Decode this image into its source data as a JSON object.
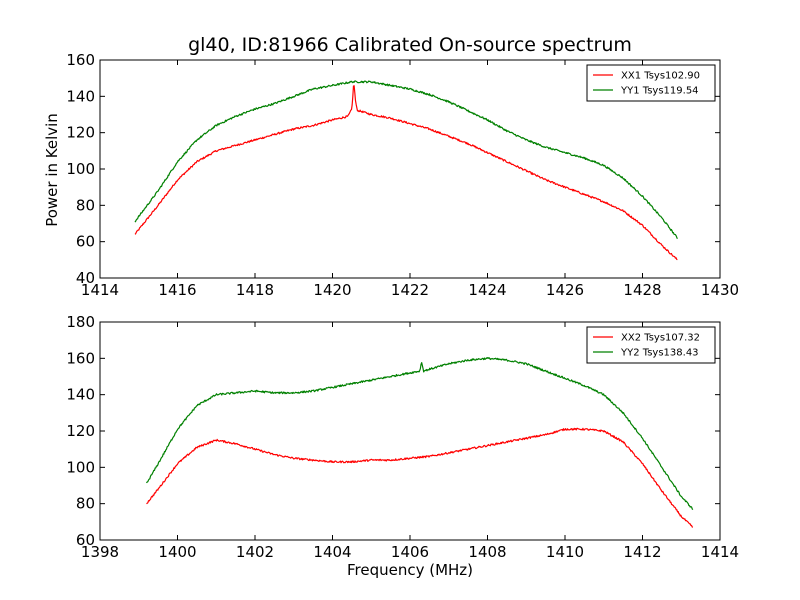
{
  "figure": {
    "title": "gl40, ID:81966 Calibrated On-source spectrum",
    "xlabel": "Frequency (MHz)",
    "ylabel": "Power in Kelvin"
  },
  "colors": {
    "red": "#ff0000",
    "green": "#008000"
  },
  "chart_data": [
    {
      "type": "line",
      "title": "gl40, ID:81966 Calibrated On-source spectrum",
      "ylabel": "Power in Kelvin",
      "xlim": [
        1414,
        1430
      ],
      "ylim": [
        40,
        160
      ],
      "xticks": [
        1414,
        1416,
        1418,
        1420,
        1422,
        1424,
        1426,
        1428,
        1430
      ],
      "yticks": [
        40,
        60,
        80,
        100,
        120,
        140,
        160
      ],
      "legend": "top-right",
      "series": [
        {
          "name": "XX1 Tsys102.90",
          "color": "#ff0000",
          "x": [
            1414.9,
            1415.5,
            1416,
            1416.5,
            1417,
            1417.5,
            1418,
            1418.5,
            1419,
            1419.5,
            1420,
            1420.4,
            1420.5,
            1420.55,
            1420.6,
            1420.65,
            1420.7,
            1421,
            1421.5,
            1422,
            1422.5,
            1423,
            1423.5,
            1424,
            1424.5,
            1425,
            1425.5,
            1426,
            1426.5,
            1427,
            1427.5,
            1428,
            1428.5,
            1428.9
          ],
          "values": [
            64,
            80,
            94,
            104,
            110,
            113,
            116,
            119,
            122,
            124,
            127,
            129,
            133,
            148,
            136,
            132,
            132,
            130,
            128,
            125,
            122,
            118,
            114,
            109,
            104,
            99,
            94,
            90,
            86,
            82,
            77,
            69,
            58,
            50
          ]
        },
        {
          "name": "YY1 Tsys119.54",
          "color": "#008000",
          "x": [
            1414.9,
            1415.5,
            1416,
            1416.5,
            1417,
            1417.5,
            1418,
            1418.5,
            1419,
            1419.5,
            1420,
            1420.5,
            1421,
            1421.5,
            1422,
            1422.5,
            1423,
            1423.5,
            1424,
            1424.5,
            1425,
            1425.5,
            1426,
            1426.5,
            1427,
            1427.5,
            1428,
            1428.5,
            1428.9
          ],
          "values": [
            71,
            88,
            104,
            116,
            124,
            129,
            133,
            136,
            140,
            144,
            146,
            148,
            148,
            146,
            144,
            141,
            137,
            132,
            127,
            121,
            116,
            112,
            109,
            106,
            102,
            95,
            85,
            73,
            62
          ]
        }
      ]
    },
    {
      "type": "line",
      "xlabel": "Frequency (MHz)",
      "xlim": [
        1398,
        1414
      ],
      "ylim": [
        60,
        180
      ],
      "xticks": [
        1398,
        1400,
        1402,
        1404,
        1406,
        1408,
        1410,
        1412,
        1414
      ],
      "yticks": [
        60,
        80,
        100,
        120,
        140,
        160,
        180
      ],
      "legend": "top-right",
      "series": [
        {
          "name": "XX2 Tsys107.32",
          "color": "#ff0000",
          "x": [
            1399.2,
            1399.5,
            1400,
            1400.5,
            1401,
            1401.5,
            1402,
            1402.5,
            1403,
            1403.5,
            1404,
            1404.5,
            1405,
            1405.5,
            1406,
            1406.5,
            1407,
            1407.5,
            1408,
            1408.5,
            1409,
            1409.5,
            1410,
            1410.5,
            1411,
            1411.5,
            1412,
            1412.5,
            1413,
            1413.3
          ],
          "values": [
            80,
            88,
            102,
            111,
            115,
            113,
            110,
            107,
            105,
            104,
            103,
            103,
            104,
            104,
            105,
            106,
            108,
            110,
            112,
            114,
            116,
            118,
            121,
            121,
            120,
            114,
            102,
            87,
            73,
            67
          ]
        },
        {
          "name": "YY2 Tsys138.43",
          "color": "#008000",
          "x": [
            1399.2,
            1399.5,
            1400,
            1400.5,
            1401,
            1401.5,
            1402,
            1402.5,
            1403,
            1403.5,
            1404,
            1404.5,
            1405,
            1405.5,
            1406,
            1406.25,
            1406.3,
            1406.35,
            1406.5,
            1407,
            1407.5,
            1408,
            1408.5,
            1409,
            1409.5,
            1410,
            1410.5,
            1411,
            1411.5,
            1412,
            1412.5,
            1413,
            1413.3
          ],
          "values": [
            91,
            102,
            121,
            134,
            140,
            141,
            142,
            141,
            141,
            142,
            144,
            146,
            148,
            150,
            152,
            153,
            158,
            153,
            154,
            157,
            159,
            160,
            159,
            157,
            153,
            149,
            145,
            140,
            130,
            116,
            100,
            84,
            77
          ]
        }
      ]
    }
  ]
}
